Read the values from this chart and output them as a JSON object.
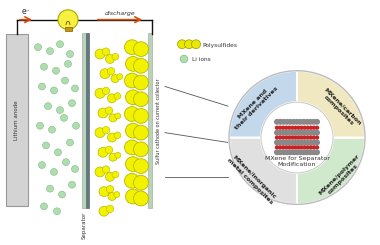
{
  "bg_color": "#ffffff",
  "anode_color": "#d3d3d3",
  "separator_color1": "#b8d4b8",
  "separator_color2": "#5a7a8a",
  "sulfur_color": "#f2f200",
  "sulfur_outline": "#b8b800",
  "li_ion_color": "#b0ddb0",
  "li_ion_outline": "#80bb80",
  "polysulfide_color": "#e8e800",
  "discharge_arrow_color": "#d05010",
  "electron_arrow_color": "#d05010",
  "wire_color": "#111111",
  "quad_colors": {
    "top_left": "#e0e0e0",
    "top_right": "#d0e8cc",
    "bottom_left": "#c4d8ec",
    "bottom_right": "#f0e8c0"
  },
  "center_text": "MXene for Separator\nModification",
  "quad_labels": {
    "top_left": "MXene and\ntheir derivatives",
    "top_right": "MXene/carbon\ncomposites",
    "bottom_left": "MXene/inorganic\nmetal composites",
    "bottom_right": "MXene/polymer\ncomposites"
  },
  "legend_polysulfide": "Polysulfides",
  "legend_li": "Li ions",
  "label_anode": "Lithium anode",
  "label_separator": "Separator",
  "label_cathode": "Sulfur cathode on current collector",
  "discharge_label": "discharge",
  "electron_label": "e⁻",
  "bulb_color": "#f8f040",
  "bulb_base_color": "#c8960c"
}
